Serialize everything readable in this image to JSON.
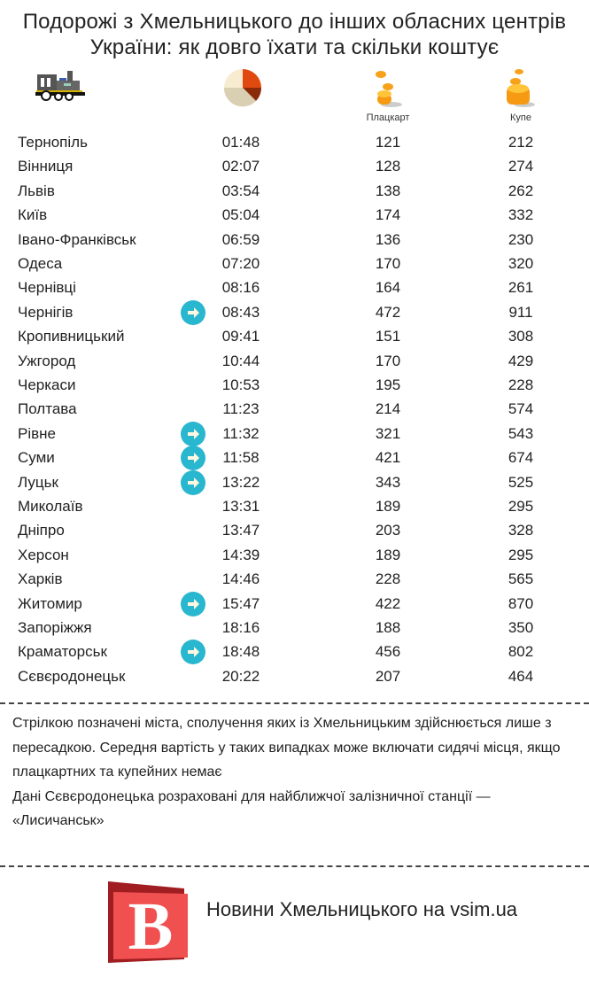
{
  "title": "Подорожі з Хмельницького до інших обласних центрів України: як довго їхати та скільки коштує",
  "columns": {
    "plackart": "Плацкарт",
    "kupe": "Купе"
  },
  "icons": {
    "train": "train-icon",
    "clock": "clock-icon",
    "coins_small": "coins-icon",
    "coins_large": "coins-stack-icon",
    "transfer": "arrow-right-icon"
  },
  "colors": {
    "arrow": "#29b6cf",
    "logo": "#f05050",
    "logo_dark": "#a01e22"
  },
  "rows": [
    {
      "city": "Тернопіль",
      "time": "01:48",
      "plackart": "121",
      "kupe": "212",
      "transfer": false
    },
    {
      "city": "Вінниця",
      "time": "02:07",
      "plackart": "128",
      "kupe": "274",
      "transfer": false
    },
    {
      "city": "Львів",
      "time": "03:54",
      "plackart": "138",
      "kupe": "262",
      "transfer": false
    },
    {
      "city": "Київ",
      "time": "05:04",
      "plackart": "174",
      "kupe": "332",
      "transfer": false
    },
    {
      "city": "Івано-Франківськ",
      "time": "06:59",
      "plackart": "136",
      "kupe": "230",
      "transfer": false
    },
    {
      "city": "Одеса",
      "time": "07:20",
      "plackart": "170",
      "kupe": "320",
      "transfer": false
    },
    {
      "city": "Чернівці",
      "time": "08:16",
      "plackart": "164",
      "kupe": "261",
      "transfer": false
    },
    {
      "city": "Чернігів",
      "time": "08:43",
      "plackart": "472",
      "kupe": "911",
      "transfer": true
    },
    {
      "city": "Кропивницький",
      "time": "09:41",
      "plackart": "151",
      "kupe": "308",
      "transfer": false
    },
    {
      "city": "Ужгород",
      "time": "10:44",
      "plackart": "170",
      "kupe": "429",
      "transfer": false
    },
    {
      "city": "Черкаси",
      "time": "10:53",
      "plackart": "195",
      "kupe": "228",
      "transfer": false
    },
    {
      "city": "Полтава",
      "time": "11:23",
      "plackart": "214",
      "kupe": "574",
      "transfer": false
    },
    {
      "city": "Рівне",
      "time": "11:32",
      "plackart": "321",
      "kupe": "543",
      "transfer": true
    },
    {
      "city": "Суми",
      "time": "11:58",
      "plackart": "421",
      "kupe": "674",
      "transfer": true
    },
    {
      "city": "Луцьк",
      "time": "13:22",
      "plackart": "343",
      "kupe": "525",
      "transfer": true
    },
    {
      "city": "Миколаїв",
      "time": "13:31",
      "plackart": "189",
      "kupe": "295",
      "transfer": false
    },
    {
      "city": "Дніпро",
      "time": "13:47",
      "plackart": "203",
      "kupe": "328",
      "transfer": false
    },
    {
      "city": "Херсон",
      "time": "14:39",
      "plackart": "189",
      "kupe": "295",
      "transfer": false
    },
    {
      "city": "Харків",
      "time": "14:46",
      "plackart": "228",
      "kupe": "565",
      "transfer": false
    },
    {
      "city": "Житомир",
      "time": "15:47",
      "plackart": "422",
      "kupe": "870",
      "transfer": true
    },
    {
      "city": "Запоріжжя",
      "time": "18:16",
      "plackart": "188",
      "kupe": "350",
      "transfer": false
    },
    {
      "city": "Краматорськ",
      "time": "18:48",
      "plackart": "456",
      "kupe": "802",
      "transfer": true
    },
    {
      "city": "Сєвєродонецьк",
      "time": "20:22",
      "plackart": "207",
      "kupe": "464",
      "transfer": false
    }
  ],
  "notes": {
    "line1": "Стрілкою позначені міста, сполучення яких із Хмельницьким здійснюється лише з пересадкою. Середня вартість у таких випадках може включати сидячі місця, якщо плацкартних та купейних немає",
    "line2": "Дані Сєвєродонецька розраховані для найближчої залізничної станції — «Лисичанськ»"
  },
  "footer": {
    "logo_letter": "B",
    "text": "Новини Хмельницького на vsim.ua"
  }
}
